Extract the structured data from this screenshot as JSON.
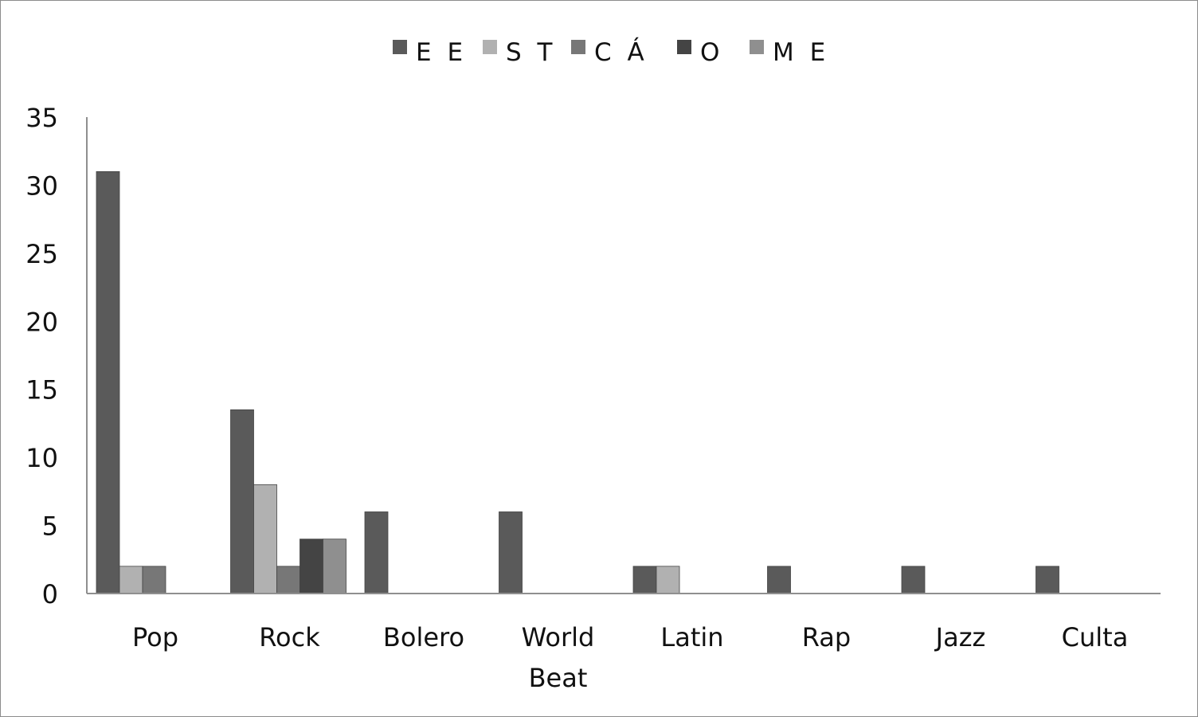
{
  "chart_data": {
    "type": "bar",
    "title": "",
    "xlabel": "",
    "ylabel": "",
    "categories": [
      "Pop",
      "Rock",
      "Bolero",
      "World Beat",
      "Latin",
      "Rap",
      "Jazz",
      "Culta"
    ],
    "category_lines": [
      [
        "Pop"
      ],
      [
        "Rock"
      ],
      [
        "Bolero"
      ],
      [
        "World",
        "Beat"
      ],
      [
        "Latin"
      ],
      [
        "Rap"
      ],
      [
        "Jazz"
      ],
      [
        "Culta"
      ]
    ],
    "series": [
      {
        "name": "E E",
        "values": [
          31,
          13.5,
          6,
          6,
          2,
          2,
          2,
          2
        ],
        "color": "#5a5a5a"
      },
      {
        "name": "S T",
        "values": [
          2,
          8,
          0,
          0,
          2,
          0,
          0,
          0
        ],
        "color": "#b1b1b1"
      },
      {
        "name": "C Á",
        "values": [
          2,
          2,
          0,
          0,
          0,
          0,
          0,
          0
        ],
        "color": "#777777"
      },
      {
        "name": "O",
        "values": [
          0,
          4,
          0,
          0,
          0,
          0,
          0,
          0
        ],
        "color": "#444444"
      },
      {
        "name": "M E",
        "values": [
          0,
          4,
          0,
          0,
          0,
          0,
          0,
          0
        ],
        "color": "#8f8f8f"
      }
    ],
    "ylim": [
      0,
      35
    ],
    "yticks": [
      0,
      5,
      10,
      15,
      20,
      25,
      30,
      35
    ],
    "grid": false,
    "legend_position": "top"
  }
}
